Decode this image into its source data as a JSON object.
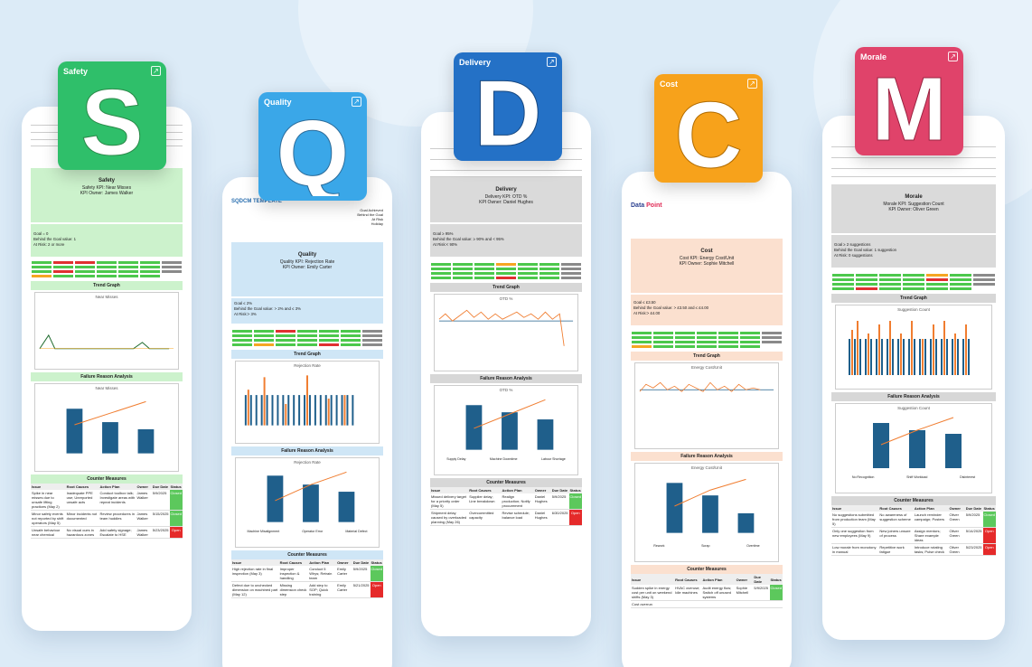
{
  "cards": [
    {
      "title": "Safety",
      "letter": "S",
      "color": "#2fbf6a"
    },
    {
      "title": "Quality",
      "letter": "Q",
      "color": "#3aa7e8"
    },
    {
      "title": "Delivery",
      "letter": "D",
      "color": "#2471c6"
    },
    {
      "title": "Cost",
      "letter": "C",
      "color": "#f7a21b"
    },
    {
      "title": "Morale",
      "letter": "M",
      "color": "#e0436a"
    }
  ],
  "sections": {
    "trend_graph": "Trend Graph",
    "failure_reason": "Failure Reason Analysis",
    "counter_measures": "Counter Measures"
  },
  "table_headers": [
    "Issue",
    "Root Causes",
    "Action Plan",
    "Owner",
    "Due Date",
    "Status"
  ],
  "safety": {
    "title": "Safety",
    "kpi": "Safety KPI: Near Misses",
    "owner": "KPI Owner: James Walker",
    "goal": "Goal = 0",
    "behind": "Behind the Goal value: 1",
    "atrisk": "At Risk: 2 or more",
    "trend_title": "Near Misses",
    "failure_title": "Near Misses",
    "rows": [
      {
        "issue": "Spike in near misses due to unsafe lifting practices (May 2)",
        "root": "Inadequate PPE use; Unreported unsafe acts",
        "action": "Conduct toolbox talk; Investigate areas with repeat incidents",
        "owner": "James Walker",
        "due": "5/9/2025",
        "status": "Closed"
      },
      {
        "issue": "Minor safety events not reported by shift operators (May 5)",
        "root": "Minor incidents not documented",
        "action": "Review procedures in team huddles",
        "owner": "James Walker",
        "due": "5/15/2025",
        "status": "Closed"
      },
      {
        "issue": "Unsafe behaviour near chemical",
        "root": "No visual cues in hazardous zones",
        "action": "Add safety signage; Escalate to HSE",
        "owner": "James Walker",
        "due": "5/23/2025",
        "status": "Open"
      }
    ]
  },
  "quality": {
    "title": "Quality",
    "kpi": "Quality KPI: Rejection Rate",
    "owner": "KPI Owner: Emily Carter",
    "goal": "Goal ≤ 2%",
    "behind": "Behind the Goal value: > 2% and ≤ 3%",
    "atrisk": "At Risk:> 3%",
    "header_text": "SQDCM TEMPLATE",
    "legend": [
      "Goal Achieved",
      "Behind the Goal",
      "At Risk",
      "Holiday"
    ],
    "trend_title": "Rejection Rate",
    "failure_title": "Rejection Rate",
    "failure_cats": [
      "Machine Misalignment",
      "Operator Error",
      "Material Defect"
    ],
    "rows": [
      {
        "issue": "High rejection rate in final inspection (May 3)",
        "root": "Improper inspection & handling",
        "action": "Conduct 5 Whys; Retrain team",
        "owner": "Emily Carter",
        "due": "5/9/2025",
        "status": "Closed"
      },
      {
        "issue": "Defect due to unchecked dimension on machined part (May 12)",
        "root": "Missing dimension check step",
        "action": "Add step to SOP; Quick training",
        "owner": "Emily Carter",
        "due": "5/21/2025",
        "status": "Open"
      }
    ]
  },
  "delivery": {
    "title": "Delivery",
    "kpi": "Delivery KPI: OTD %",
    "owner": "KPI Owner: Daniel Hughes",
    "goal": "Goal ≥ 95%",
    "behind": "Behind the Goal value: ≥ 90% and < 95%",
    "atrisk": "At Risk:< 90%",
    "trend_title": "OTD %",
    "failure_title": "OTD %",
    "failure_cats": [
      "Supply Delay",
      "Machine Downtime",
      "Labour Shortage"
    ],
    "rows": [
      {
        "issue": "Missed delivery target for a priority order (May 5)",
        "root": "Supplier delay; Line breakdown",
        "action": "Realign production; Notify procurement",
        "owner": "Daniel Hughes",
        "due": "5/9/2025",
        "status": "Closed"
      },
      {
        "issue": "Shipment delay caused by overloaded planning (May 26)",
        "root": "Overcommitted capacity",
        "action": "Revise schedule; balance load",
        "owner": "Daniel Hughes",
        "due": "6/30/2025",
        "status": "Open"
      }
    ]
  },
  "cost": {
    "title": "Cost",
    "kpi": "Cost KPI: Energy Cost/Unit",
    "owner": "KPI Owner: Sophie Mitchell",
    "goal": "Goal ≤ £3.50",
    "behind": "Behind the Goal value: > £3.50 and ≤ £4.00",
    "atrisk": "At Risk:> £4.00",
    "logo_a": "Data",
    "logo_b": "Point",
    "trend_title": "Energy Cost/Unit",
    "failure_title": "Energy Cost/Unit",
    "failure_cats": [
      "Rework",
      "Scrap",
      "Overtime"
    ],
    "rows": [
      {
        "issue": "Sudden spike in energy cost per unit on weekend shifts (May 3)",
        "root": "HVAC overuse; Idle machines",
        "action": "Audit energy flow; Switch off unused systems",
        "owner": "Sophie Mitchell",
        "due": "5/9/2025",
        "status": "Closed"
      },
      {
        "issue": "Cost overrun",
        "root": "",
        "action": "",
        "owner": "",
        "due": "",
        "status": ""
      }
    ]
  },
  "morale": {
    "title": "Morale",
    "kpi": "Morale KPI: Suggestion Count",
    "owner": "KPI Owner: Oliver Green",
    "goal": "Goal ≥ 2 suggestions",
    "behind": "Behind the Goal value: 1 suggestion",
    "atrisk": "At Risk: 0 suggestions",
    "trend_title": "Suggestion Count",
    "failure_title": "Suggestion Count",
    "failure_cats": [
      "No Recognition",
      "Shift Workload",
      "Disinterest"
    ],
    "rows": [
      {
        "issue": "No suggestions submitted from production team (May 5)",
        "root": "No awareness of suggestion scheme",
        "action": "Launch reminder campaign; Posters",
        "owner": "Oliver Green",
        "due": "5/9/2025",
        "status": "Closed"
      },
      {
        "issue": "Only one suggestion from new employees (May 9)",
        "root": "New joiners unsure of process",
        "action": "Assign mentors; Share example ideas",
        "owner": "Oliver Green",
        "due": "5/14/2025",
        "status": "Open"
      },
      {
        "issue": "Low morale from monotony in manual",
        "root": "Repetitive work fatigue",
        "action": "Introduce rotating tasks; Pulse check",
        "owner": "Oliver Green",
        "due": "5/23/2025",
        "status": "Open"
      }
    ]
  }
}
